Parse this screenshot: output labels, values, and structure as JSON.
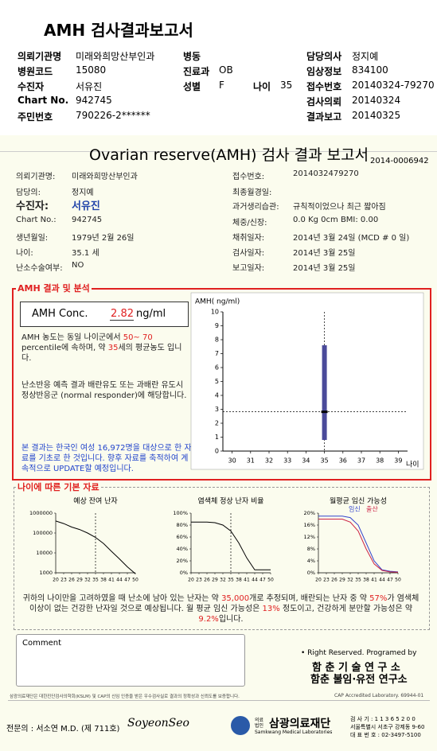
{
  "header": {
    "title": "AMH 검사결과보고서",
    "fields": [
      {
        "label": "의뢰기관명",
        "value": "미래와희망산부인과"
      },
      {
        "label": "병동"
      },
      {
        "label": "담당의사",
        "value": "정지예"
      },
      {
        "label": "병원코드",
        "value": "15080"
      },
      {
        "label": "진료과",
        "value": "OB"
      },
      {
        "label": "임상정보",
        "value": "834100"
      },
      {
        "label": "수진자",
        "value": "서유진"
      },
      {
        "label": "성별",
        "value": "F"
      },
      {
        "label": "나이",
        "value": 35
      },
      {
        "label": "접수번호",
        "value": "20140324-79270"
      },
      {
        "label": "Chart No.",
        "value": "942745"
      },
      {
        "label": "검사의뢰",
        "value": "20140324"
      },
      {
        "label": "주민번호",
        "value": "790226-2******"
      },
      {
        "label": "결과보고",
        "value": "20140325"
      }
    ]
  },
  "report": {
    "title": "Ovarian reserve(AMH) 검사 결과 보고서",
    "code": "2014-0006942",
    "fields": [
      {
        "label": "의뢰기관명:",
        "value": "미래와희망산부인과"
      },
      {
        "label": "담당의:",
        "value": "정지예"
      },
      {
        "label": "수진자:",
        "value": "서유진"
      },
      {
        "label": "Chart No.:",
        "value": "942745"
      },
      {
        "label": "생년월일:",
        "value": "1979년 2월 26일"
      },
      {
        "label": "나이:",
        "value": "35.1 세"
      },
      {
        "label": "난소수술여부:",
        "value": "NO"
      },
      {
        "label": "접수번호:",
        "value": "2014032479270"
      },
      {
        "label": "최종월경일:"
      },
      {
        "label": "과거생리습관:",
        "value": "규칙적이었으나 최근 짧아짐"
      },
      {
        "label": "체중/신장:",
        "value": "0.0 Kg      0cm     BMI:   0.00"
      },
      {
        "label": "채취일자:",
        "value": "2014년 3월 24일    (MCD # 0 일)"
      },
      {
        "label": "검사일자:",
        "value": "2014년 3월 25일"
      },
      {
        "label": "보고일자:",
        "value": "2014년 3월 25일"
      }
    ]
  },
  "analysis": {
    "title": "AMH 결과 및 분석",
    "conc_label": "AMH Conc.",
    "conc_value": 2.82,
    "conc_unit": "ng/ml",
    "para1": [
      "AMH 농도는 동일 나이군에서 ",
      "50~ 70",
      " percentile에 속하며, 약 ",
      "35",
      "세의 평균농도 입니다."
    ],
    "para2": "난소반응 예측 결과 배란유도 또는 과배란 유도시 정상반응군 (normal responder)에 해당합니다.",
    "para3": "본 결과는 한국인 여성 16,972명을 대상으로 한 자료를 기초로 한 것입니다. 향후 자료를 축적하여 계속적으로 UPDATE할 예정입니다.",
    "chart": {
      "type": "range",
      "y_label": "AMH( ng/ml)",
      "x_label": "나이",
      "xlim": [
        29.5,
        39.5
      ],
      "xticks": [
        30,
        31,
        32,
        33,
        34,
        35,
        36,
        37,
        38,
        39
      ],
      "ylim": [
        0,
        10
      ],
      "yticks": [
        0,
        1,
        2,
        3,
        4,
        5,
        6,
        7,
        8,
        9,
        10
      ],
      "range": {
        "x": 35,
        "low": 0.8,
        "high": 7.6
      },
      "color": "#4a4a9a"
    }
  },
  "basic": {
    "title": "나이에 따른 기본 자료",
    "charts": [
      {
        "type": "line",
        "title": "예상 잔여 난자",
        "log": true,
        "ylim": [
          1000,
          1000000
        ],
        "yticks": [
          1000,
          10000,
          100000,
          1000000
        ],
        "xlim": [
          20,
          50
        ],
        "xticks": [
          20,
          23,
          26,
          29,
          32,
          35,
          38,
          41,
          44,
          47,
          50
        ],
        "series": [
          {
            "color": "#000000",
            "x": [
              20,
              23,
              26,
              29,
              32,
              35,
              38,
              41,
              44,
              47,
              50
            ],
            "values": [
              400000,
              300000,
              200000,
              150000,
              100000,
              60000,
              30000,
              12000,
              5000,
              2000,
              900
            ]
          }
        ]
      },
      {
        "type": "line",
        "title": "염색체 정상 난자 비율",
        "ylim": [
          0,
          100
        ],
        "yticks": [
          {
            "value": 0,
            "label": "0%"
          },
          {
            "value": 20,
            "label": "20%"
          },
          {
            "value": 40,
            "label": "40%"
          },
          {
            "value": 60,
            "label": "60%"
          },
          {
            "value": 80,
            "label": "80%"
          },
          {
            "value": 100,
            "label": "100%"
          }
        ],
        "xlim": [
          20,
          50
        ],
        "xticks": [
          20,
          23,
          26,
          29,
          32,
          35,
          38,
          41,
          44,
          47,
          50
        ],
        "series": [
          {
            "color": "#000000",
            "x": [
              20,
              23,
              26,
              29,
              32,
              35,
              38,
              41,
              44,
              47,
              50
            ],
            "values": [
              85,
              85,
              85,
              84,
              80,
              70,
              50,
              25,
              5,
              5,
              5
            ]
          }
        ]
      },
      {
        "type": "line",
        "title": "월평균 임신 가능성",
        "ylim": [
          0,
          20
        ],
        "yticks": [
          {
            "value": 0,
            "label": "0%"
          },
          {
            "value": 4,
            "label": "4%"
          },
          {
            "value": 8,
            "label": "8%"
          },
          {
            "value": 12,
            "label": "12%"
          },
          {
            "value": 16,
            "label": "16%"
          },
          {
            "value": 20,
            "label": "20%"
          }
        ],
        "xlim": [
          20,
          50
        ],
        "xticks": [
          20,
          23,
          26,
          29,
          32,
          35,
          38,
          41,
          44,
          47,
          50
        ],
        "series": [
          {
            "name": "임신",
            "color": "#3344cc",
            "x": [
              20,
              23,
              26,
              29,
              32,
              35,
              38,
              41,
              44,
              47,
              50
            ],
            "values": [
              19,
              19,
              19,
              19,
              18.5,
              16,
              10,
              4,
              1,
              0.5,
              0.3
            ]
          },
          {
            "name": "출산",
            "color": "#cc2244",
            "x": [
              20,
              23,
              26,
              29,
              32,
              35,
              38,
              41,
              44,
              47,
              50
            ],
            "values": [
              18,
              18,
              18,
              18,
              17,
              14,
              8,
              3,
              0.8,
              0.3,
              0.2
            ]
          }
        ]
      }
    ],
    "summary": [
      "귀하의 나이만을 고려하였을 때 난소에 남아 있는 난자는 약 ",
      "35,000",
      "개로 추정되며, 배란되는 난자 중 약 ",
      "57%",
      "가 염색체이상이 없는 건강한 난자일 것으로 예상됩니다. 월 평균 임신 가능성은 ",
      "13%",
      " 정도이고, 건강하게 분만할 가능성은 약 ",
      "9.2%",
      "입니다."
    ]
  },
  "comment": {
    "label": "Comment"
  },
  "credits": {
    "line1": "• Right Reserved. Programed by",
    "line2": "함 춘  기 술  연 구 소",
    "line3": "함춘 불임·유전 연구소"
  },
  "footer": {
    "note": "삼광의료재단은 대한진단검사의학회(KSLM) 및 CAP의 신임 인증을 받은 우수검사실로 결과의 정확성과 신뢰도를 보증합니다.",
    "cap": "CAP Accredited Laboratory. 69944-01",
    "doctor": "전문의 : 서소연 M.D. (제 711호)",
    "signature": "SoyeonSeo",
    "org_small": "의료법인",
    "org": "삼광의료재단",
    "org_en": "Samkwang Medical Laboratories",
    "addr1": "검 사 기 : 1 1 3 6 5 2 0 0",
    "addr2": "서울특별시 서초구 강제동 9-60",
    "addr3": "대 표 번 호 : 02-3497-5100"
  }
}
